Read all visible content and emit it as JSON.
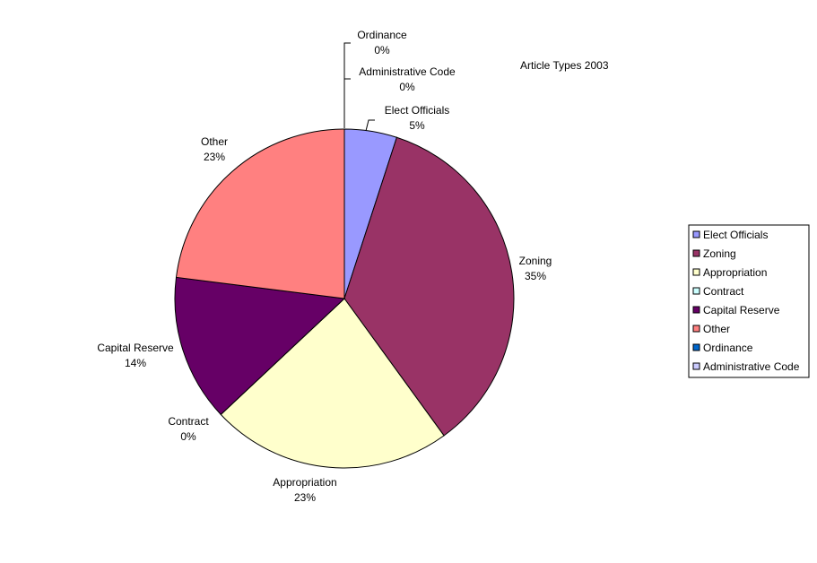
{
  "chart_data": {
    "type": "pie",
    "title": "Article Types 2003",
    "legend_position": "right",
    "slices": [
      {
        "label": "Elect Officials",
        "value": 5,
        "pct_label": "5%",
        "color": "#9999ff"
      },
      {
        "label": "Zoning",
        "value": 35,
        "pct_label": "35%",
        "color": "#993366"
      },
      {
        "label": "Appropriation",
        "value": 23,
        "pct_label": "23%",
        "color": "#ffffcc"
      },
      {
        "label": "Contract",
        "value": 0,
        "pct_label": "0%",
        "color": "#ccffff"
      },
      {
        "label": "Capital Reserve",
        "value": 14,
        "pct_label": "14%",
        "color": "#660066"
      },
      {
        "label": "Other",
        "value": 23,
        "pct_label": "23%",
        "color": "#ff8080"
      },
      {
        "label": "Ordinance",
        "value": 0,
        "pct_label": "0%",
        "color": "#0066cc"
      },
      {
        "label": "Administrative Code",
        "value": 0,
        "pct_label": "0%",
        "color": "#ccccff"
      }
    ]
  }
}
